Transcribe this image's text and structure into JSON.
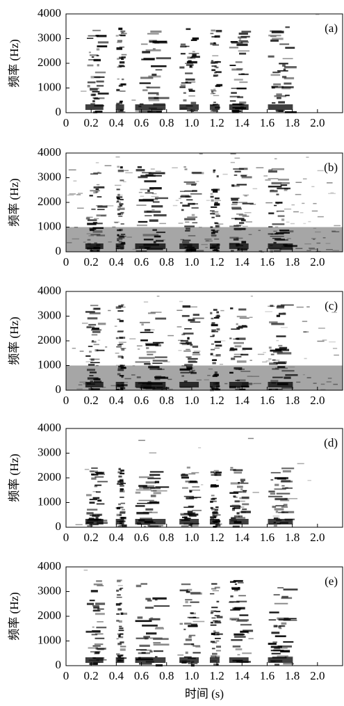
{
  "chart_data": [
    {
      "type": "spectrogram",
      "panel_label": "(a)",
      "ylabel": "频率 (Hz)",
      "xlim": [
        0,
        2.2
      ],
      "ylim": [
        0,
        4000
      ],
      "xticks": [
        0,
        0.2,
        0.4,
        0.6,
        0.8,
        {
          "value": 1,
          "label": "1.0"
        },
        1.2,
        1.4,
        1.6,
        1.8,
        {
          "value": 2,
          "label": "2.0"
        }
      ],
      "yticks": [
        0,
        1000,
        2000,
        3000,
        4000
      ]
    },
    {
      "type": "spectrogram",
      "panel_label": "(b)",
      "ylabel": "频率 (Hz)",
      "xlim": [
        0,
        2.2
      ],
      "ylim": [
        0,
        4000
      ],
      "xticks": [
        0,
        0.2,
        0.4,
        0.6,
        0.8,
        {
          "value": 1,
          "label": "1.0"
        },
        1.2,
        1.4,
        1.6,
        1.8,
        {
          "value": 2,
          "label": "2.0"
        }
      ],
      "yticks": [
        0,
        1000,
        2000,
        3000,
        4000
      ]
    },
    {
      "type": "spectrogram",
      "panel_label": "(c)",
      "ylabel": "频率 (Hz)",
      "xlim": [
        0,
        2.2
      ],
      "ylim": [
        0,
        4000
      ],
      "xticks": [
        0,
        0.2,
        0.4,
        0.6,
        0.8,
        {
          "value": 1,
          "label": "1.0"
        },
        1.2,
        1.4,
        1.6,
        1.8,
        {
          "value": 2,
          "label": "2.0"
        }
      ],
      "yticks": [
        0,
        1000,
        2000,
        3000,
        4000
      ]
    },
    {
      "type": "spectrogram",
      "panel_label": "(d)",
      "ylabel": "频率 (Hz)",
      "xlim": [
        0,
        2.2
      ],
      "ylim": [
        0,
        4000
      ],
      "xticks": [
        0,
        0.2,
        0.4,
        0.6,
        0.8,
        {
          "value": 1,
          "label": "1.0"
        },
        1.2,
        1.4,
        1.6,
        1.8,
        {
          "value": 2,
          "label": "2.0"
        }
      ],
      "yticks": [
        0,
        1000,
        2000,
        3000,
        4000
      ]
    },
    {
      "type": "spectrogram",
      "panel_label": "(e)",
      "ylabel": "频率 (Hz)",
      "xlabel": "时间 (s)",
      "xlim": [
        0,
        2.2
      ],
      "ylim": [
        0,
        4000
      ],
      "xticks": [
        0,
        0.2,
        0.4,
        0.6,
        0.8,
        {
          "value": 1,
          "label": "1.0"
        },
        1.2,
        1.4,
        1.6,
        1.8,
        {
          "value": 2,
          "label": "2.0"
        }
      ],
      "yticks": [
        0,
        1000,
        2000,
        3000,
        4000
      ]
    }
  ]
}
